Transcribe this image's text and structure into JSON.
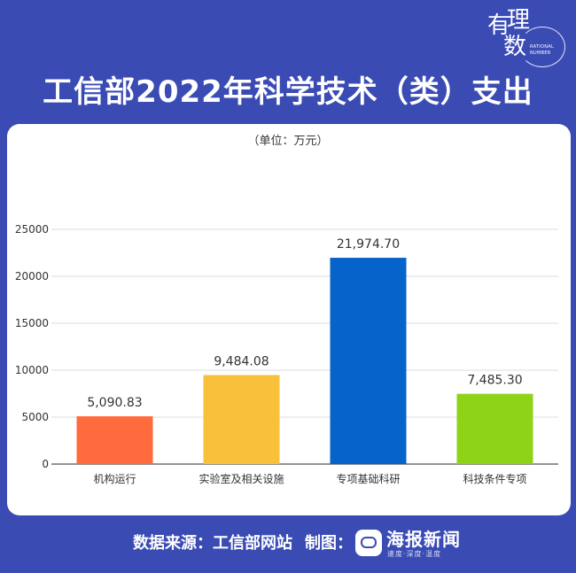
{
  "logo": {
    "chars": [
      "有",
      "理",
      "数"
    ],
    "en_line1": "RATIONAL",
    "en_line2": "NUMBER"
  },
  "title": "工信部2022年科学技术（类）支出",
  "unit": "（单位：万元）",
  "chart_data": {
    "type": "bar",
    "categories": [
      "机构运行",
      "实验室及相关设施",
      "专项基础科研",
      "科技条件专项"
    ],
    "values": [
      5090.83,
      9484.08,
      21974.7,
      7485.3
    ],
    "value_labels": [
      "5,090.83",
      "9,484.08",
      "21,974.70",
      "7,485.30"
    ],
    "colors": [
      "#ff6b3d",
      "#f9c03b",
      "#0563c9",
      "#8ed315"
    ],
    "ylim": [
      0,
      25000
    ],
    "yticks": [
      0,
      5000,
      10000,
      15000,
      20000,
      25000
    ],
    "ytick_labels": [
      "0",
      "5000",
      "10000",
      "15000",
      "20000",
      "25000"
    ],
    "grid": true,
    "title": "",
    "xlabel": "",
    "ylabel": ""
  },
  "footer": {
    "source": "数据来源：工信部网站",
    "maker_label": "制图：",
    "brand_name": "海报新闻",
    "brand_sub": "速度·深度·温度"
  }
}
